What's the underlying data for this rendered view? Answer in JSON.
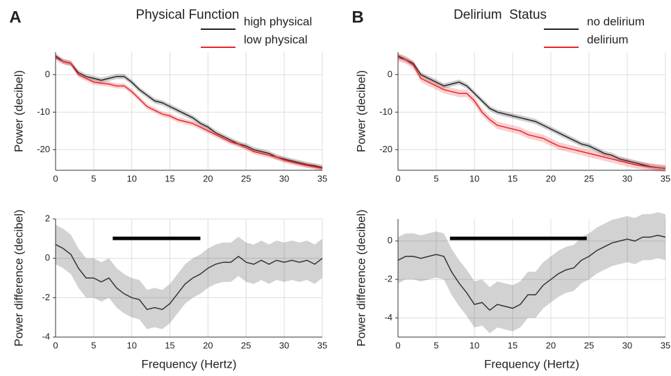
{
  "chart_data": [
    {
      "type": "line",
      "panel": "A",
      "title": "Physical Function",
      "y_label": "Power (decibel)",
      "x": [
        0,
        1,
        2,
        3,
        4,
        5,
        6,
        7,
        8,
        9,
        10,
        11,
        12,
        13,
        14,
        15,
        16,
        17,
        18,
        19,
        20,
        21,
        22,
        23,
        24,
        25,
        26,
        27,
        28,
        29,
        30,
        31,
        32,
        33,
        34,
        35
      ],
      "xlim": [
        0,
        35
      ],
      "xticks": [
        0,
        5,
        10,
        15,
        20,
        25,
        30,
        35
      ],
      "ylim": [
        -25.5,
        6
      ],
      "yticks": [
        -20,
        -10,
        0
      ],
      "grid": true,
      "legend": "upper right",
      "series": [
        {
          "name": "high physical",
          "color": "#222222",
          "error": 0.7,
          "values": [
            5,
            3.5,
            3,
            0.5,
            -0.5,
            -1,
            -1.5,
            -1,
            -0.5,
            -0.5,
            -2,
            -4,
            -5.5,
            -7,
            -7.5,
            -8.5,
            -9.5,
            -10.5,
            -11.5,
            -13,
            -14,
            -15.5,
            -16.5,
            -17.5,
            -18.5,
            -19,
            -20,
            -20.5,
            -21,
            -22,
            -22.5,
            -23,
            -23.5,
            -24,
            -24.3,
            -24.8
          ]
        },
        {
          "name": "low physical",
          "color": "#e8262a",
          "error": 0.7,
          "values": [
            4.5,
            3.5,
            3,
            0,
            -1,
            -2,
            -2.3,
            -2.5,
            -3,
            -3,
            -4.5,
            -6.5,
            -8.5,
            -9.5,
            -10.5,
            -11,
            -12,
            -12.5,
            -13,
            -14,
            -15,
            -16,
            -17,
            -18,
            -18.5,
            -19.5,
            -20.5,
            -21,
            -21.5,
            -22,
            -22.8,
            -23.3,
            -23.8,
            -24.2,
            -24.6,
            -25
          ]
        }
      ]
    },
    {
      "type": "line",
      "panel": "B",
      "title": "Delirium  Status",
      "y_label": "Power (decibel)",
      "x": [
        0,
        1,
        2,
        3,
        4,
        5,
        6,
        7,
        8,
        9,
        10,
        11,
        12,
        13,
        14,
        15,
        16,
        17,
        18,
        19,
        20,
        21,
        22,
        23,
        24,
        25,
        26,
        27,
        28,
        29,
        30,
        31,
        32,
        33,
        34,
        35
      ],
      "xlim": [
        0,
        35
      ],
      "xticks": [
        0,
        5,
        10,
        15,
        20,
        25,
        30,
        35
      ],
      "ylim": [
        -25.5,
        6
      ],
      "yticks": [
        -20,
        -10,
        0
      ],
      "grid": true,
      "legend": "upper right",
      "series": [
        {
          "name": "no delirium",
          "color": "#222222",
          "error": 0.7,
          "values": [
            5,
            4,
            3,
            0,
            -1,
            -2,
            -3,
            -2.5,
            -2,
            -3,
            -5,
            -7,
            -9,
            -10,
            -10.5,
            -11,
            -11.5,
            -12,
            -12.5,
            -13.5,
            -14.5,
            -15.5,
            -16.5,
            -17.5,
            -18.5,
            -19,
            -20,
            -21,
            -21.5,
            -22.5,
            -23,
            -23.5,
            -24,
            -24.5,
            -24.8,
            -25
          ]
        },
        {
          "name": "delirium",
          "color": "#e8262a",
          "error": 1,
          "values": [
            4.5,
            4,
            2.5,
            -1,
            -2,
            -3,
            -4,
            -4.5,
            -5,
            -5,
            -7,
            -10,
            -12,
            -13.5,
            -14,
            -14.5,
            -15,
            -16,
            -16.5,
            -17,
            -18,
            -19,
            -19.5,
            -20,
            -20.5,
            -21,
            -21.5,
            -22,
            -22.5,
            -23,
            -23.5,
            -24,
            -24.3,
            -24.6,
            -24.8,
            -25
          ]
        }
      ]
    },
    {
      "type": "line",
      "y_label": "Power difference (decibel)",
      "x_label": "Frequency (Hertz)",
      "x": [
        0,
        1,
        2,
        3,
        4,
        5,
        6,
        7,
        8,
        9,
        10,
        11,
        12,
        13,
        14,
        15,
        16,
        17,
        18,
        19,
        20,
        21,
        22,
        23,
        24,
        25,
        26,
        27,
        28,
        29,
        30,
        31,
        32,
        33,
        34,
        35
      ],
      "xlim": [
        0,
        35
      ],
      "xticks": [
        0,
        5,
        10,
        15,
        20,
        25,
        30,
        35
      ],
      "ylim": [
        -4,
        2
      ],
      "yticks": [
        -4,
        -2,
        0,
        2
      ],
      "grid": true,
      "significant_range": [
        7.5,
        19
      ],
      "series": [
        {
          "color": "#333333",
          "error": 1,
          "values": [
            0.7,
            0.5,
            0.2,
            -0.5,
            -1,
            -1,
            -1.2,
            -1,
            -1.5,
            -1.8,
            -2,
            -2.1,
            -2.6,
            -2.5,
            -2.6,
            -2.3,
            -1.8,
            -1.3,
            -1,
            -0.8,
            -0.5,
            -0.3,
            -0.2,
            -0.2,
            0.1,
            -0.2,
            -0.3,
            -0.1,
            -0.3,
            -0.1,
            -0.2,
            -0.1,
            -0.2,
            -0.1,
            -0.3,
            0
          ]
        }
      ]
    },
    {
      "type": "line",
      "y_label": "Power difference (decibel)",
      "x_label": "Frequency (Hertz)",
      "x": [
        0,
        1,
        2,
        3,
        4,
        5,
        6,
        7,
        8,
        9,
        10,
        11,
        12,
        13,
        14,
        15,
        16,
        17,
        18,
        19,
        20,
        21,
        22,
        23,
        24,
        25,
        26,
        27,
        28,
        29,
        30,
        31,
        32,
        33,
        34,
        35
      ],
      "xlim": [
        0,
        35
      ],
      "xticks": [
        0,
        5,
        10,
        15,
        20,
        25,
        30,
        35
      ],
      "ylim": [
        -5,
        1.15
      ],
      "yticks": [
        -4,
        -2,
        0
      ],
      "grid": true,
      "significant_range": [
        6.8,
        24.7
      ],
      "series": [
        {
          "color": "#333333",
          "error": 1.2,
          "values": [
            -1,
            -0.8,
            -0.8,
            -0.9,
            -0.8,
            -0.7,
            -0.8,
            -1.6,
            -2.2,
            -2.7,
            -3.3,
            -3.2,
            -3.6,
            -3.3,
            -3.4,
            -3.5,
            -3.3,
            -2.8,
            -2.8,
            -2.3,
            -2,
            -1.7,
            -1.5,
            -1.4,
            -1,
            -0.8,
            -0.5,
            -0.3,
            -0.1,
            0,
            0.1,
            0,
            0.2,
            0.2,
            0.3,
            0.2
          ]
        }
      ]
    }
  ]
}
